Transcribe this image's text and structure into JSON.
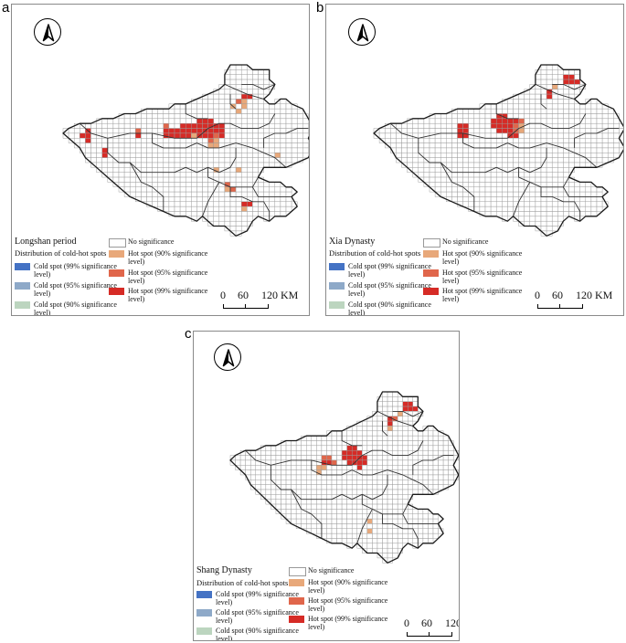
{
  "panels": [
    {
      "id": "a",
      "letter": "a",
      "period": "Longshan period",
      "distribution_title": "Distribution of cold-hot spots",
      "hot_cells": [
        {
          "r": 6,
          "c": 32,
          "level": "h99"
        },
        {
          "r": 6,
          "c": 33,
          "level": "h99"
        },
        {
          "r": 7,
          "c": 31,
          "level": "h95"
        },
        {
          "r": 7,
          "c": 32,
          "level": "h90"
        },
        {
          "r": 8,
          "c": 30,
          "level": "h90"
        },
        {
          "r": 8,
          "c": 32,
          "level": "h90"
        },
        {
          "r": 9,
          "c": 31,
          "level": "h90"
        },
        {
          "r": 11,
          "c": 24,
          "level": "h99"
        },
        {
          "r": 11,
          "c": 25,
          "level": "h99"
        },
        {
          "r": 11,
          "c": 26,
          "level": "h99"
        },
        {
          "r": 12,
          "c": 18,
          "level": "h95"
        },
        {
          "r": 12,
          "c": 21,
          "level": "h99"
        },
        {
          "r": 12,
          "c": 22,
          "level": "h99"
        },
        {
          "r": 12,
          "c": 23,
          "level": "h99"
        },
        {
          "r": 12,
          "c": 24,
          "level": "h99"
        },
        {
          "r": 12,
          "c": 25,
          "level": "h99"
        },
        {
          "r": 12,
          "c": 26,
          "level": "h99"
        },
        {
          "r": 12,
          "c": 27,
          "level": "h99"
        },
        {
          "r": 12,
          "c": 28,
          "level": "h99"
        },
        {
          "r": 13,
          "c": 4,
          "level": "h99"
        },
        {
          "r": 13,
          "c": 13,
          "level": "h95"
        },
        {
          "r": 13,
          "c": 18,
          "level": "h99"
        },
        {
          "r": 13,
          "c": 19,
          "level": "h99"
        },
        {
          "r": 13,
          "c": 20,
          "level": "h99"
        },
        {
          "r": 13,
          "c": 21,
          "level": "h99"
        },
        {
          "r": 13,
          "c": 22,
          "level": "h99"
        },
        {
          "r": 13,
          "c": 23,
          "level": "h99"
        },
        {
          "r": 13,
          "c": 24,
          "level": "h99"
        },
        {
          "r": 13,
          "c": 25,
          "level": "h99"
        },
        {
          "r": 13,
          "c": 26,
          "level": "h99"
        },
        {
          "r": 13,
          "c": 27,
          "level": "h99"
        },
        {
          "r": 13,
          "c": 28,
          "level": "h99"
        },
        {
          "r": 14,
          "c": 3,
          "level": "h99"
        },
        {
          "r": 14,
          "c": 4,
          "level": "h99"
        },
        {
          "r": 14,
          "c": 13,
          "level": "h99"
        },
        {
          "r": 14,
          "c": 18,
          "level": "h99"
        },
        {
          "r": 14,
          "c": 19,
          "level": "h99"
        },
        {
          "r": 14,
          "c": 20,
          "level": "h99"
        },
        {
          "r": 14,
          "c": 21,
          "level": "h99"
        },
        {
          "r": 14,
          "c": 22,
          "level": "h99"
        },
        {
          "r": 14,
          "c": 23,
          "level": "h90"
        },
        {
          "r": 14,
          "c": 24,
          "level": "h99"
        },
        {
          "r": 14,
          "c": 25,
          "level": "h99"
        },
        {
          "r": 14,
          "c": 26,
          "level": "h99"
        },
        {
          "r": 14,
          "c": 27,
          "level": "h95"
        },
        {
          "r": 14,
          "c": 28,
          "level": "h99"
        },
        {
          "r": 15,
          "c": 4,
          "level": "h99"
        },
        {
          "r": 15,
          "c": 26,
          "level": "h95"
        },
        {
          "r": 15,
          "c": 27,
          "level": "h90"
        },
        {
          "r": 16,
          "c": 26,
          "level": "h90"
        },
        {
          "r": 16,
          "c": 27,
          "level": "h90"
        },
        {
          "r": 17,
          "c": 7,
          "level": "h99"
        },
        {
          "r": 18,
          "c": 7,
          "level": "h99"
        },
        {
          "r": 18,
          "c": 38,
          "level": "h90"
        },
        {
          "r": 21,
          "c": 27,
          "level": "h90"
        },
        {
          "r": 21,
          "c": 31,
          "level": "h90"
        },
        {
          "r": 24,
          "c": 29,
          "level": "h95"
        },
        {
          "r": 25,
          "c": 29,
          "level": "h90"
        },
        {
          "r": 25,
          "c": 30,
          "level": "h95"
        },
        {
          "r": 28,
          "c": 32,
          "level": "h99"
        },
        {
          "r": 28,
          "c": 33,
          "level": "h99"
        },
        {
          "r": 29,
          "c": 32,
          "level": "h90"
        }
      ]
    },
    {
      "id": "b",
      "letter": "b",
      "period": "Xia Dynasty",
      "distribution_title": "Distribution of cold-hot spots",
      "hot_cells": [
        {
          "r": 2,
          "c": 34,
          "level": "h99"
        },
        {
          "r": 2,
          "c": 35,
          "level": "h99"
        },
        {
          "r": 3,
          "c": 34,
          "level": "h99"
        },
        {
          "r": 3,
          "c": 35,
          "level": "h99"
        },
        {
          "r": 3,
          "c": 36,
          "level": "h99"
        },
        {
          "r": 4,
          "c": 32,
          "level": "h90"
        },
        {
          "r": 5,
          "c": 31,
          "level": "h99"
        },
        {
          "r": 6,
          "c": 31,
          "level": "h99"
        },
        {
          "r": 10,
          "c": 22,
          "level": "h99"
        },
        {
          "r": 10,
          "c": 23,
          "level": "h99"
        },
        {
          "r": 11,
          "c": 21,
          "level": "h99"
        },
        {
          "r": 11,
          "c": 22,
          "level": "h99"
        },
        {
          "r": 11,
          "c": 23,
          "level": "h99"
        },
        {
          "r": 11,
          "c": 24,
          "level": "h99"
        },
        {
          "r": 11,
          "c": 25,
          "level": "h99"
        },
        {
          "r": 11,
          "c": 26,
          "level": "h95"
        },
        {
          "r": 12,
          "c": 15,
          "level": "h99"
        },
        {
          "r": 12,
          "c": 16,
          "level": "h99"
        },
        {
          "r": 12,
          "c": 21,
          "level": "h99"
        },
        {
          "r": 12,
          "c": 22,
          "level": "h99"
        },
        {
          "r": 12,
          "c": 23,
          "level": "h99"
        },
        {
          "r": 12,
          "c": 24,
          "level": "h99"
        },
        {
          "r": 12,
          "c": 25,
          "level": "h95"
        },
        {
          "r": 12,
          "c": 26,
          "level": "h90"
        },
        {
          "r": 13,
          "c": 15,
          "level": "h99"
        },
        {
          "r": 13,
          "c": 16,
          "level": "h99"
        },
        {
          "r": 13,
          "c": 22,
          "level": "h99"
        },
        {
          "r": 13,
          "c": 23,
          "level": "h99"
        },
        {
          "r": 13,
          "c": 24,
          "level": "h99"
        },
        {
          "r": 13,
          "c": 25,
          "level": "h95"
        },
        {
          "r": 13,
          "c": 26,
          "level": "h90"
        },
        {
          "r": 14,
          "c": 15,
          "level": "h99"
        },
        {
          "r": 14,
          "c": 16,
          "level": "h99"
        },
        {
          "r": 14,
          "c": 24,
          "level": "h99"
        },
        {
          "r": 14,
          "c": 25,
          "level": "h99"
        }
      ]
    },
    {
      "id": "c",
      "letter": "c",
      "period": "Shang Dynasty",
      "distribution_title": "Distribution of cold-hot spots",
      "hot_cells": [
        {
          "r": 2,
          "c": 34,
          "level": "h99"
        },
        {
          "r": 2,
          "c": 35,
          "level": "h99"
        },
        {
          "r": 3,
          "c": 34,
          "level": "h99"
        },
        {
          "r": 3,
          "c": 35,
          "level": "h99"
        },
        {
          "r": 3,
          "c": 36,
          "level": "h99"
        },
        {
          "r": 4,
          "c": 33,
          "level": "h90"
        },
        {
          "r": 5,
          "c": 31,
          "level": "h99"
        },
        {
          "r": 5,
          "c": 32,
          "level": "h95"
        },
        {
          "r": 6,
          "c": 31,
          "level": "h99"
        },
        {
          "r": 7,
          "c": 31,
          "level": "h90"
        },
        {
          "r": 11,
          "c": 23,
          "level": "h99"
        },
        {
          "r": 11,
          "c": 24,
          "level": "h99"
        },
        {
          "r": 12,
          "c": 22,
          "level": "h99"
        },
        {
          "r": 12,
          "c": 23,
          "level": "h99"
        },
        {
          "r": 12,
          "c": 24,
          "level": "h99"
        },
        {
          "r": 12,
          "c": 25,
          "level": "h99"
        },
        {
          "r": 13,
          "c": 18,
          "level": "h95"
        },
        {
          "r": 13,
          "c": 19,
          "level": "h95"
        },
        {
          "r": 13,
          "c": 22,
          "level": "h99"
        },
        {
          "r": 13,
          "c": 23,
          "level": "h99"
        },
        {
          "r": 13,
          "c": 24,
          "level": "h99"
        },
        {
          "r": 13,
          "c": 25,
          "level": "h99"
        },
        {
          "r": 13,
          "c": 26,
          "level": "h99"
        },
        {
          "r": 14,
          "c": 18,
          "level": "h99"
        },
        {
          "r": 14,
          "c": 19,
          "level": "h99"
        },
        {
          "r": 14,
          "c": 20,
          "level": "h95"
        },
        {
          "r": 14,
          "c": 23,
          "level": "h99"
        },
        {
          "r": 14,
          "c": 24,
          "level": "h99"
        },
        {
          "r": 14,
          "c": 25,
          "level": "h99"
        },
        {
          "r": 14,
          "c": 26,
          "level": "h99"
        },
        {
          "r": 15,
          "c": 17,
          "level": "h90"
        },
        {
          "r": 15,
          "c": 18,
          "level": "h90"
        },
        {
          "r": 15,
          "c": 25,
          "level": "h99"
        },
        {
          "r": 16,
          "c": 17,
          "level": "h90"
        },
        {
          "r": 26,
          "c": 27,
          "level": "h90"
        },
        {
          "r": 28,
          "c": 27,
          "level": "h90"
        }
      ]
    }
  ],
  "legend": {
    "no_significance": "No significance",
    "cold99": "Cold spot (99% significance level)",
    "cold95": "Cold spot (95% significance level)",
    "cold90": "Cold spot (90% significance level)",
    "hot90": "Hot spot (90% significance level)",
    "hot95": "Hot spot (95% significance level)",
    "hot99": "Hot spot (99% significance level)"
  },
  "scale": {
    "n0": "0",
    "n60": "60",
    "n120": "120",
    "unit": "KM"
  },
  "colors": {
    "cold99": "#4472c4",
    "cold95": "#8ea9c8",
    "cold90": "#bcd5bf",
    "hot90": "#e8a87a",
    "hot95": "#e0664b",
    "hot99": "#d62b26",
    "grid": "#9a9a9a",
    "border": "#1a1a1a"
  },
  "icons": {
    "north_arrow": "north-arrow-icon"
  }
}
